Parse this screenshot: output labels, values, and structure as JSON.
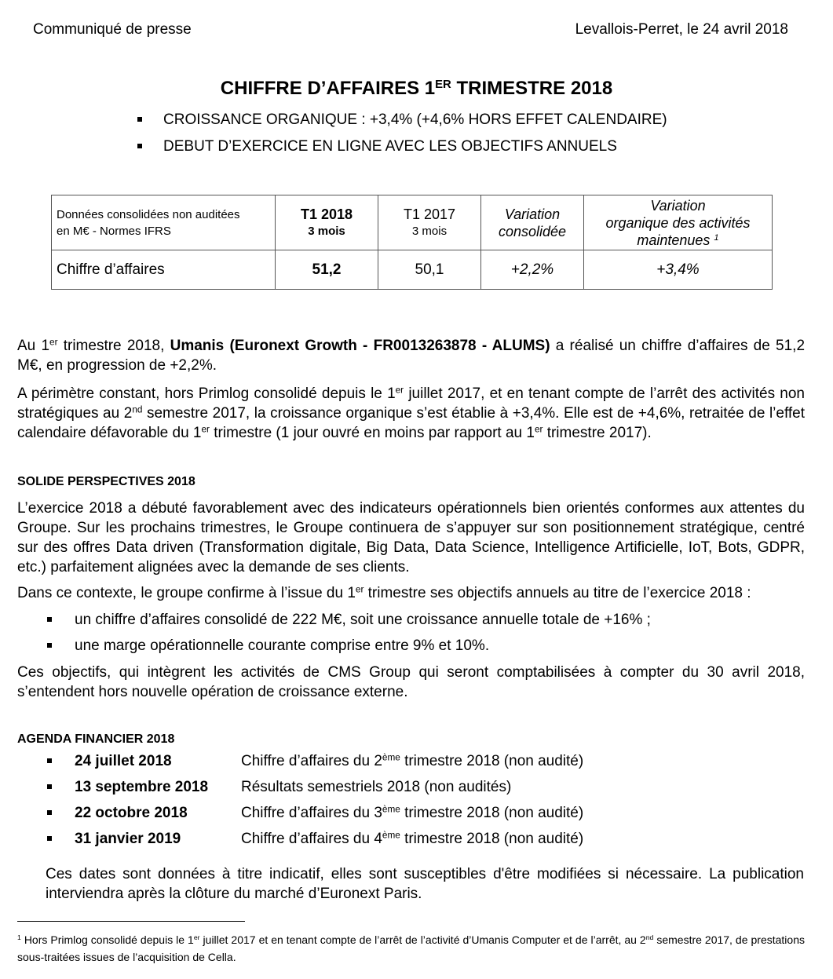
{
  "header": {
    "left": "Communiqué de presse",
    "right": "Levallois-Perret, le 24 avril 2018"
  },
  "title": [
    "CHIFFRE D’AFFAIRES 1",
    {
      "sup": "ER"
    },
    " TRIMESTRE 2018"
  ],
  "highlights": [
    "CROISSANCE ORGANIQUE : +3,4% (+4,6% HORS EFFET CALENDAIRE)",
    "DEBUT D’EXERCICE EN LIGNE AVEC LES OBJECTIFS ANNUELS"
  ],
  "table": {
    "header": [
      [
        "Données consolidées non auditées",
        "en M€ - Normes IFRS"
      ],
      [
        "T1 2018",
        "3 mois"
      ],
      [
        "T1 2017",
        "3 mois"
      ],
      [
        "Variation",
        "consolidée"
      ],
      [
        "Variation",
        "organique des activités",
        [
          "maintenues ",
          {
            "sup": "1"
          }
        ]
      ]
    ],
    "rows": [
      [
        "Chiffre d’affaires",
        "51,2",
        "50,1",
        "+2,2%",
        "+3,4%"
      ]
    ]
  },
  "intro": [
    [
      "Au 1",
      {
        "sup": "er"
      },
      " trimestre 2018, ",
      {
        "b": "Umanis (Euronext Growth - FR0013263878 - ALUMS)"
      },
      " a réalisé un chiffre d’affaires de 51,2 M€, en progression de +2,2%."
    ],
    [
      "A périmètre constant, hors Primlog consolidé depuis le 1",
      {
        "sup": "er"
      },
      " juillet 2017, et en tenant compte de l’arrêt des activités non stratégiques au 2",
      {
        "sup": "nd"
      },
      " semestre 2017, la croissance organique s’est établie à +3,4%. Elle est de +4,6%, retraitée de l’effet calendaire défavorable du 1",
      {
        "sup": "er"
      },
      " trimestre (1 jour ouvré en moins par rapport au 1",
      {
        "sup": "er"
      },
      " trimestre 2017)."
    ]
  ],
  "perspectives": {
    "heading": "SOLIDE PERSPECTIVES 2018",
    "paragraphs": [
      [
        "L’exercice 2018 a débuté favorablement avec des indicateurs opérationnels bien orientés conformes aux attentes du Groupe. Sur les prochains trimestres, le Groupe continuera de s’appuyer sur son positionnement stratégique, centré sur des offres Data driven (Transformation digitale, Big Data, Data Science, Intelligence Artificielle, IoT, Bots, GDPR, etc.) parfaitement alignées avec la demande de ses clients."
      ],
      [
        "Dans ce contexte, le groupe confirme à l’issue du 1",
        {
          "sup": "er"
        },
        " trimestre ses objectifs annuels au titre de l’exercice 2018 :"
      ]
    ],
    "bullets": [
      "un chiffre d’affaires consolidé de 222 M€, soit une croissance annuelle totale de +16% ;",
      "une marge opérationnelle courante comprise entre 9% et 10%."
    ],
    "closing": "Ces objectifs, qui intègrent les activités de CMS Group qui seront comptabilisées à compter du 30 avril 2018, s’entendent hors nouvelle opération de croissance externe."
  },
  "agenda": {
    "heading": "AGENDA FINANCIER 2018",
    "items": [
      {
        "date": "24 juillet 2018",
        "event": [
          "Chiffre d’affaires du 2",
          {
            "sup": "ème"
          },
          " trimestre 2018 (non audité)"
        ]
      },
      {
        "date": "13 septembre 2018",
        "event": [
          "Résultats semestriels 2018 (non audités)"
        ]
      },
      {
        "date": "22 octobre 2018",
        "event": [
          "Chiffre d’affaires du 3",
          {
            "sup": "ème"
          },
          " trimestre 2018 (non audité)"
        ]
      },
      {
        "date": "31 janvier 2019",
        "event": [
          "Chiffre d’affaires du 4",
          {
            "sup": "ème"
          },
          " trimestre 2018 (non audité)"
        ]
      }
    ],
    "note": "Ces dates sont données à titre indicatif, elles sont susceptibles d'être modifiées si nécessaire. La publication interviendra après la clôture du marché d’Euronext Paris."
  },
  "footnote": [
    {
      "sup": "1"
    },
    " Hors Primlog consolidé depuis le 1",
    {
      "sup": "er"
    },
    " juillet 2017 et en tenant compte de l’arrêt de l’activité d’Umanis Computer et de l’arrêt, au 2",
    {
      "sup": "nd"
    },
    " semestre 2017, de prestations sous-traitées issues de l’acquisition de Cella."
  ]
}
